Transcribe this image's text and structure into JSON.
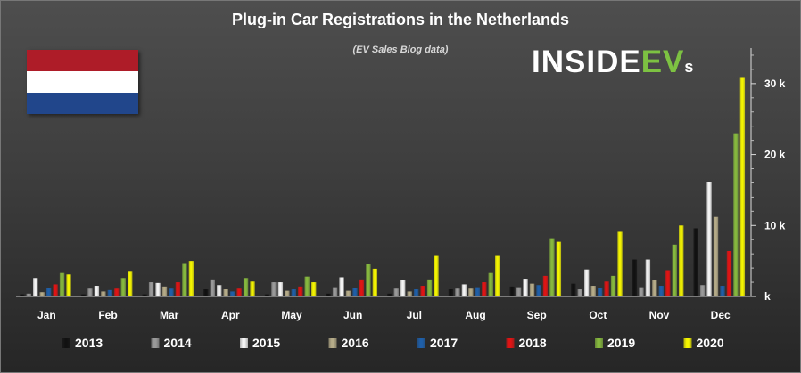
{
  "logo": {
    "part1": "INSIDE",
    "part2": "EV",
    "part3": "s"
  },
  "colors": {
    "2013": "#111111",
    "2014": "#9a9a9a",
    "2015": "#f4f4f4",
    "2016": "#b5ab88",
    "2017": "#1f5fa8",
    "2018": "#e01414",
    "2019": "#86b83e",
    "2020": "#f4f400"
  },
  "chart_data": {
    "type": "bar",
    "title": "Plug-in Car Registrations in the Netherlands",
    "subtitle": "(EV Sales Blog data)",
    "xlabel": "",
    "ylabel": "",
    "ylim": [
      0,
      35000
    ],
    "yticks": [
      0,
      10000,
      20000,
      30000
    ],
    "ytick_labels": [
      "k",
      "10 k",
      "20 k",
      "30 k"
    ],
    "legend_position": "bottom",
    "categories": [
      "Jan",
      "Feb",
      "Mar",
      "Apr",
      "May",
      "Jun",
      "Jul",
      "Aug",
      "Sep",
      "Oct",
      "Nov",
      "Dec"
    ],
    "series": [
      {
        "name": "2013",
        "values": [
          300,
          300,
          300,
          1000,
          300,
          400,
          400,
          1000,
          1400,
          1800,
          5200,
          9600
        ]
      },
      {
        "name": "2014",
        "values": [
          400,
          1100,
          2000,
          2400,
          2000,
          1300,
          1100,
          1100,
          1300,
          1000,
          1300,
          1600
        ]
      },
      {
        "name": "2015",
        "values": [
          2600,
          1500,
          1900,
          1600,
          2000,
          2700,
          2300,
          1700,
          2500,
          3800,
          5200,
          16100
        ]
      },
      {
        "name": "2016",
        "values": [
          600,
          700,
          1400,
          1000,
          800,
          800,
          700,
          1100,
          1800,
          1500,
          2300,
          11200
        ]
      },
      {
        "name": "2017",
        "values": [
          1200,
          900,
          1100,
          700,
          1000,
          1200,
          1000,
          1300,
          1600,
          1200,
          1500,
          1500
        ]
      },
      {
        "name": "2018",
        "values": [
          1700,
          1100,
          2000,
          1100,
          1400,
          2400,
          1500,
          2000,
          2900,
          2100,
          3700,
          6400
        ]
      },
      {
        "name": "2019",
        "values": [
          3300,
          2600,
          4700,
          2600,
          2800,
          4600,
          2400,
          3300,
          8200,
          2900,
          7300,
          23000
        ]
      },
      {
        "name": "2020",
        "values": [
          3100,
          3600,
          5000,
          2100,
          2000,
          3900,
          5700,
          5700,
          7700,
          9100,
          10000,
          30800
        ]
      }
    ]
  }
}
